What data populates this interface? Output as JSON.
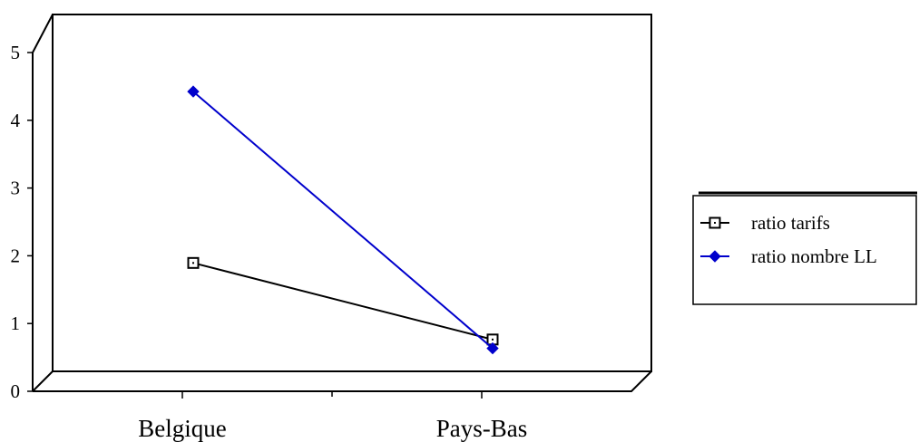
{
  "chart_data": {
    "type": "line",
    "categories": [
      "Belgique",
      "Pays-Bas"
    ],
    "series": [
      {
        "name": "ratio tarifs",
        "values": [
          1.6,
          0.47
        ],
        "color": "#000000",
        "marker": "square-open"
      },
      {
        "name": "ratio nombre LL",
        "values": [
          4.13,
          0.34
        ],
        "color": "#0000cc",
        "marker": "diamond-filled"
      }
    ],
    "ylim": [
      0,
      5
    ],
    "yticks": [
      "0",
      "1",
      "2",
      "3",
      "4",
      "5"
    ],
    "legend_position": "right",
    "grid": false,
    "style": "3d-frame"
  }
}
